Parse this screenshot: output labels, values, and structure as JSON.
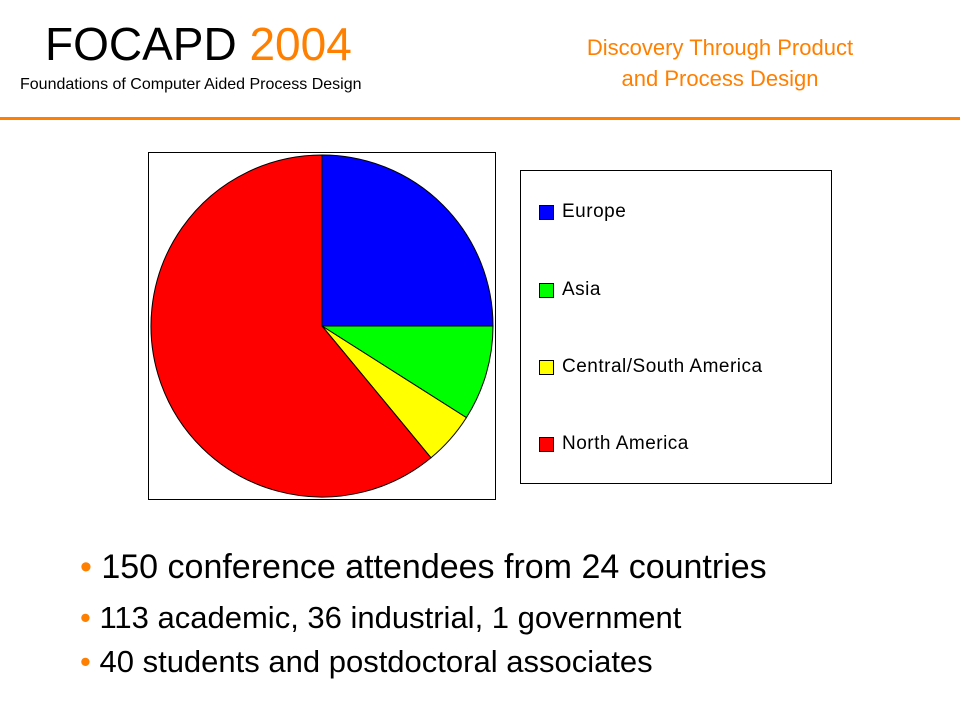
{
  "header": {
    "title_prefix": "FOCAPD",
    "title_year": "2004",
    "subtitle": "Foundations of Computer Aided Process Design",
    "tagline_line1": "Discovery Through Product",
    "tagline_line2": "and Process Design",
    "accent_color": "#ff7f00"
  },
  "chart_data": {
    "type": "pie",
    "title": "",
    "legend_position": "right",
    "categories": [
      "Europe",
      "Asia",
      "Central/South America",
      "North America"
    ],
    "values": [
      25,
      9,
      5,
      61
    ],
    "units": "percent",
    "colors": [
      "#0000ff",
      "#00ff00",
      "#ffff00",
      "#ff0000"
    ]
  },
  "bullets": [
    {
      "marker": "•",
      "text": "150 conference attendees from 24 countries"
    },
    {
      "marker": "•",
      "text": "113 academic, 36 industrial, 1 government"
    },
    {
      "marker": "•",
      "text": "40 students and postdoctoral associates"
    }
  ]
}
